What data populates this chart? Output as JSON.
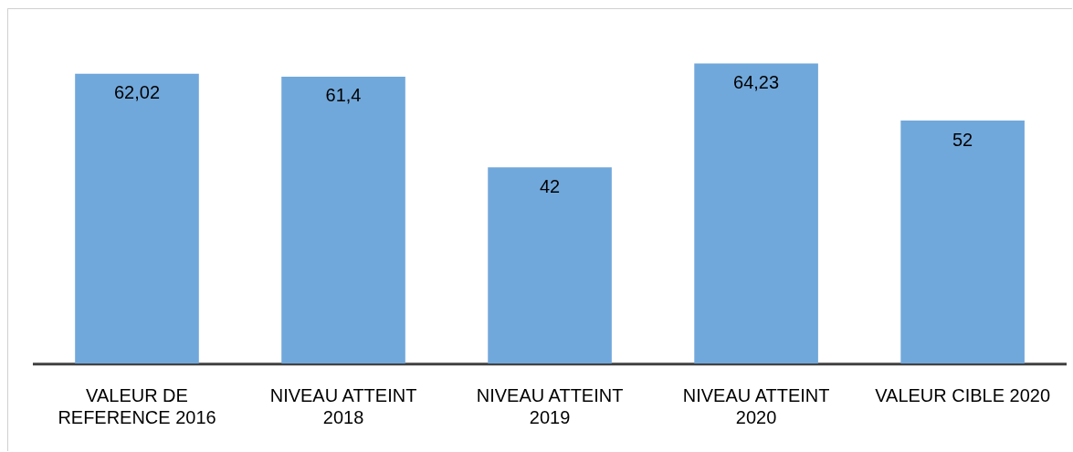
{
  "chart_data": {
    "type": "bar",
    "categories": [
      "VALEUR DE REFERENCE 2016",
      "NIVEAU ATTEINT 2018",
      "NIVEAU ATTEINT 2019",
      "NIVEAU ATTEINT 2020",
      "VALEUR CIBLE 2020"
    ],
    "values": [
      62.02,
      61.4,
      42,
      64.23,
      52
    ],
    "value_labels": [
      "62,02",
      "61,4",
      "42",
      "64,23",
      "52"
    ],
    "color": "#71a8db",
    "grid": false,
    "legend": false
  }
}
